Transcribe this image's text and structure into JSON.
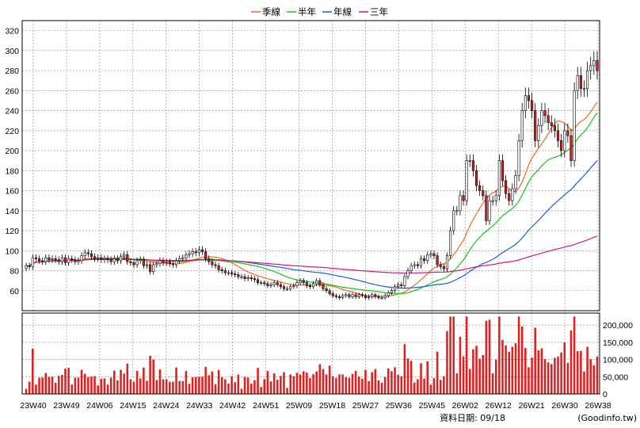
{
  "chart_data": {
    "type": "candlestick",
    "legend": [
      {
        "key": "ma_season",
        "label": "季線",
        "color": "#ee6a1b"
      },
      {
        "key": "ma_half",
        "label": "半年",
        "color": "#19c419"
      },
      {
        "key": "ma_year",
        "label": "年線",
        "color": "#1b5fd8"
      },
      {
        "key": "ma_three",
        "label": "三年",
        "color": "#d1187a"
      }
    ],
    "colors": {
      "up": "#ffffff",
      "down": "#d42020",
      "volume": "#e02020",
      "grid": "#888888"
    },
    "price_axis": {
      "ticks": [
        60,
        80,
        100,
        120,
        140,
        160,
        180,
        200,
        220,
        240,
        260,
        280,
        300,
        320
      ],
      "ylim": [
        40,
        330
      ]
    },
    "volume_axis": {
      "ticks": [
        0,
        50000,
        100000,
        150000,
        200000
      ],
      "tick_labels": [
        "0",
        "50,000",
        "100,000",
        "150,000",
        "200,000"
      ],
      "ylim": [
        0,
        235000
      ]
    },
    "x_ticks": [
      "23W40",
      "23W49",
      "24W06",
      "24W15",
      "24W24",
      "24W33",
      "24W42",
      "24W51",
      "25W09",
      "25W18",
      "25W27",
      "25W36",
      "25W45",
      "26W02",
      "26W12",
      "26W21",
      "26W30",
      "26W38"
    ],
    "date_label": "資料日期: 09/18",
    "source": "(Goodinfo.tw)",
    "close": [
      85,
      84,
      93,
      92,
      90,
      89,
      93,
      91,
      92,
      91,
      89,
      93,
      88,
      92,
      91,
      89,
      90,
      95,
      98,
      97,
      94,
      92,
      93,
      91,
      92,
      91,
      89,
      92,
      90,
      94,
      96,
      89,
      88,
      86,
      90,
      91,
      85,
      86,
      79,
      86,
      87,
      90,
      88,
      89,
      87,
      86,
      90,
      92,
      93,
      96,
      97,
      99,
      98,
      101,
      99,
      92,
      89,
      86,
      85,
      81,
      80,
      78,
      78,
      77,
      76,
      74,
      74,
      72,
      73,
      72,
      71,
      68,
      68,
      67,
      65,
      66,
      68,
      66,
      64,
      62,
      62,
      64,
      65,
      68,
      70,
      68,
      65,
      64,
      67,
      70,
      66,
      62,
      60,
      57,
      55,
      54,
      53,
      55,
      56,
      54,
      56,
      54,
      56,
      55,
      53,
      54,
      56,
      54,
      53,
      53,
      55,
      58,
      60,
      64,
      66,
      65,
      74,
      80,
      85,
      86,
      85,
      92,
      90,
      96,
      97,
      95,
      86,
      84,
      82,
      95,
      120,
      140,
      140,
      155,
      150,
      190,
      190,
      180,
      165,
      160,
      155,
      130,
      150,
      150,
      155,
      190,
      170,
      157,
      150,
      162,
      175,
      210,
      240,
      255,
      250,
      240,
      210,
      225,
      240,
      235,
      228,
      225,
      220,
      210,
      200,
      220,
      215,
      190,
      260,
      275,
      262,
      262,
      280,
      285,
      290,
      280
    ]
  }
}
